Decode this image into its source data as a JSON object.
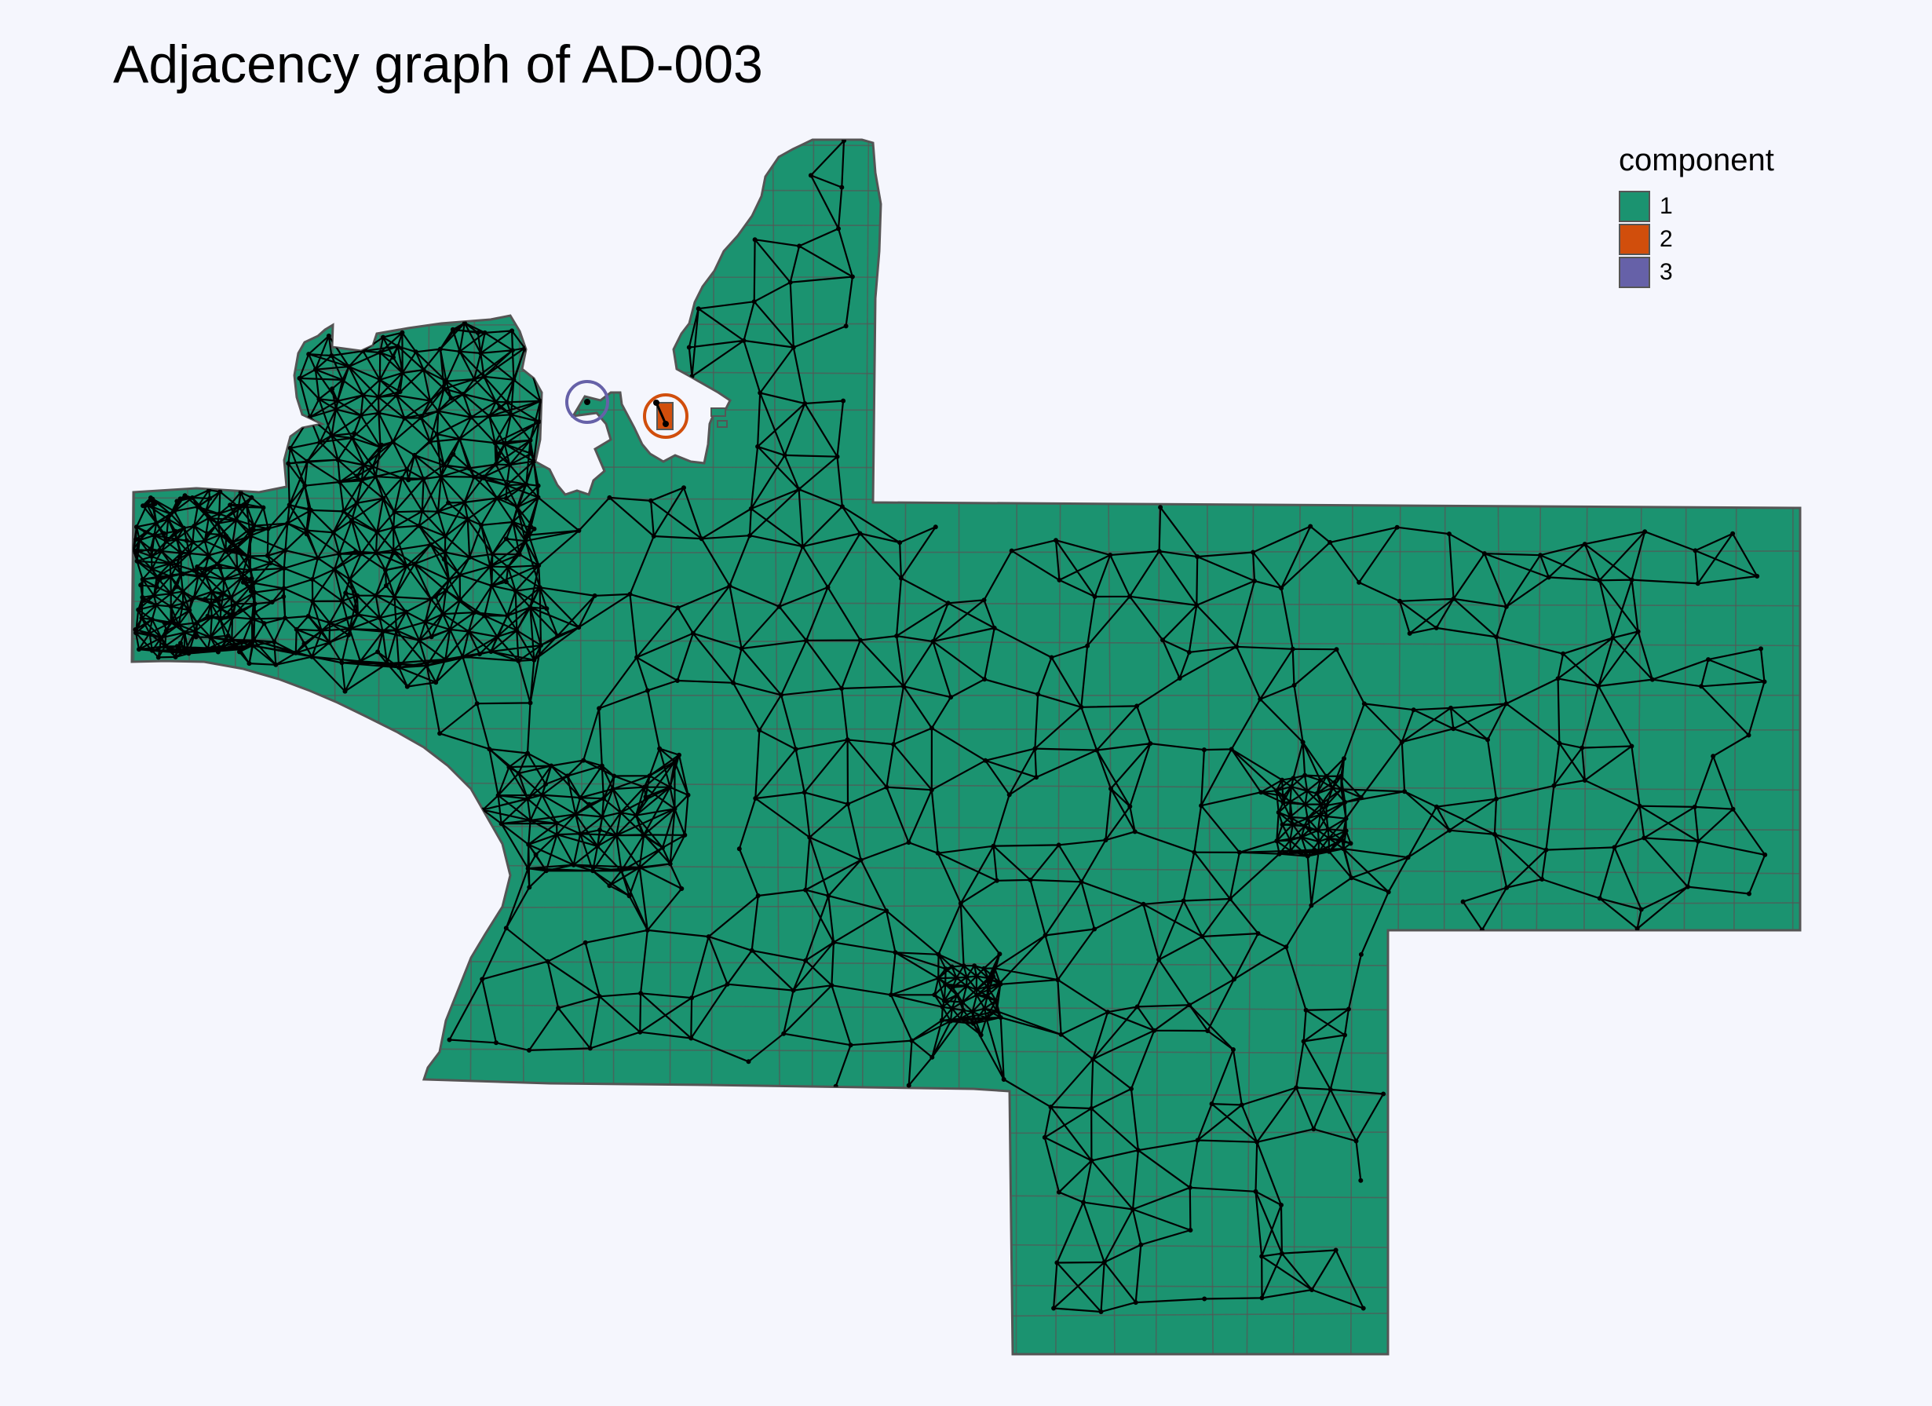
{
  "title": "Adjacency graph of AD-003",
  "legend": {
    "title": "component",
    "items": [
      {
        "label": "1",
        "color": "#1B9370"
      },
      {
        "label": "2",
        "color": "#D14E0C"
      },
      {
        "label": "3",
        "color": "#6661A8"
      }
    ]
  },
  "colors": {
    "background": "#F5F6FD",
    "region_fill": "#1B9370",
    "region_border": "#555555",
    "edge": "#000000"
  }
}
